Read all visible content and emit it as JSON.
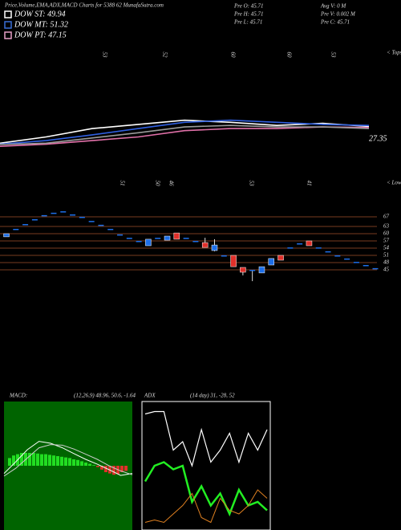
{
  "header": {
    "title": "Price,Volume,EMA,ADX,MACD Charts for 5388 62 MunafaSutra.com",
    "legend": [
      {
        "label": "DOW ST: 49.94",
        "color": "#ffffff"
      },
      {
        "label": "DOW MT: 51.32",
        "color": "#3a6fd8"
      },
      {
        "label": "DOW PT: 47.15",
        "color": "#e8a0c8"
      }
    ],
    "info": [
      "Pre O: 45.71",
      "Avg V: 0 M",
      "Pre H: 45.71",
      "Pre V: 0.002 M",
      "Pre L: 45.71",
      "Pre C: 45.71"
    ]
  },
  "chart_data": [
    {
      "type": "line",
      "tops_label": "< Tops",
      "top_labels": [
        "53",
        "52",
        "60",
        "60",
        "53"
      ],
      "annotation": "27.35",
      "categories": [
        null,
        null,
        null,
        null,
        null,
        null,
        null,
        null,
        null
      ],
      "ylim": [
        0,
        100
      ],
      "series": [
        {
          "color": "#ffffff",
          "values": [
            9,
            15,
            23,
            27,
            31,
            29,
            26,
            28,
            25
          ]
        },
        {
          "color": "#2f5fe0",
          "values": [
            8,
            11.5,
            17,
            23,
            29,
            31,
            29,
            27,
            26
          ]
        },
        {
          "color": "#e070a8",
          "values": [
            6,
            8,
            11.5,
            15,
            21,
            23,
            23,
            24.6,
            24
          ]
        },
        {
          "color": "#9a9a9a",
          "values": [
            7.7,
            9,
            14,
            19,
            24.6,
            26,
            24.6,
            24.6,
            23
          ]
        }
      ]
    },
    {
      "type": "candlestick",
      "lows_label": "< Lows",
      "low_labels": [
        "51",
        "50",
        "46",
        "53",
        "41"
      ],
      "ylim": [
        40,
        75
      ],
      "yticks": [
        67,
        63,
        60,
        57,
        54,
        51,
        48,
        45
      ],
      "grid_color": "#a0522d",
      "up_color": "#1e6fe8",
      "down_color": "#e0302a",
      "open": [
        58.7,
        62,
        64,
        66,
        67.7,
        68.7,
        69.3,
        68,
        67,
        65.3,
        63.7,
        62,
        59.7,
        58.3,
        57,
        55,
        58.3,
        57.3,
        60.3,
        58.3,
        57,
        56.3,
        53,
        51,
        51,
        46,
        45,
        43.7,
        47,
        51,
        54.3,
        56,
        57,
        54.3,
        52.7,
        51,
        49.7,
        48.3,
        47,
        45.7
      ],
      "high": [
        60,
        62,
        64,
        66,
        67.7,
        68.7,
        69.3,
        68,
        67,
        65.3,
        63.7,
        62,
        59.7,
        58.3,
        57,
        57.7,
        58.3,
        59,
        60.3,
        58.3,
        57,
        58.3,
        57.7,
        51,
        51,
        46,
        45,
        46.3,
        49.7,
        51,
        54.3,
        56,
        57,
        54.3,
        52.7,
        51,
        49.7,
        48.3,
        47,
        45.7
      ],
      "low": [
        58.7,
        62,
        64,
        66,
        67.7,
        68.7,
        69.3,
        68,
        67,
        65.3,
        63.7,
        62,
        59.7,
        58.3,
        57,
        55,
        58.3,
        57.3,
        57.7,
        58.3,
        57,
        54.3,
        52.7,
        51,
        46.3,
        42.7,
        40.3,
        43.7,
        47,
        49,
        54.3,
        56,
        55,
        54.3,
        52.7,
        51,
        49.7,
        48.3,
        47,
        45.7
      ],
      "close": [
        60,
        62,
        64,
        66,
        67.7,
        68.7,
        69.3,
        68,
        67,
        65.3,
        63.7,
        62,
        59.7,
        58.3,
        57,
        57.7,
        58.3,
        59,
        57.7,
        58.3,
        57,
        54.3,
        55.3,
        51,
        46.3,
        44,
        45,
        46.3,
        49.7,
        49,
        54.3,
        56,
        55,
        54.3,
        52.7,
        51,
        49.7,
        48.3,
        47,
        45.7
      ]
    },
    {
      "type": "macd",
      "label": "MACD:",
      "params": "(12,26,9) 48.96, 50.6, -1.64",
      "ylim": [
        -50,
        50
      ],
      "background": "#006400",
      "histogram_up_color": "#22dd22",
      "histogram_down_color": "#e0302a",
      "histogram": [
        6,
        8,
        9,
        10,
        10,
        10,
        10,
        9.5,
        9,
        9,
        8.5,
        8,
        7.5,
        7,
        6.5,
        6,
        5,
        4.5,
        3.5,
        2.5,
        1.5,
        0.5,
        -1,
        -3,
        -5,
        -6,
        -7,
        -6.5,
        -5,
        -4
      ],
      "series": [
        {
          "color": "#ffffff",
          "values": [
            -6,
            3,
            12.5,
            19,
            17.5,
            14,
            9.4,
            5,
            1.2,
            -3,
            -7.5,
            -6
          ]
        },
        {
          "color": "#cccccc",
          "values": [
            -8,
            -2,
            6,
            14,
            16.5,
            16,
            13,
            9,
            5,
            0,
            -4,
            -7
          ]
        }
      ]
    },
    {
      "type": "adx",
      "label": "ADX",
      "params": "(14 day) 31, -28, 52",
      "ylim": [
        0,
        100
      ],
      "series": [
        {
          "color": "#ffffff",
          "values": [
            93,
            95,
            95,
            63,
            70,
            50,
            80,
            53,
            63,
            77,
            53,
            77,
            63,
            80
          ]
        },
        {
          "color": "#22ee22",
          "values": [
            37,
            50,
            53,
            47,
            50,
            20,
            33,
            17,
            27,
            10,
            30,
            17,
            20,
            13
          ]
        },
        {
          "color": "#e08020",
          "values": [
            3,
            5,
            3,
            10,
            17,
            27,
            7,
            3,
            23,
            13,
            10,
            17,
            30,
            23
          ]
        }
      ]
    }
  ]
}
